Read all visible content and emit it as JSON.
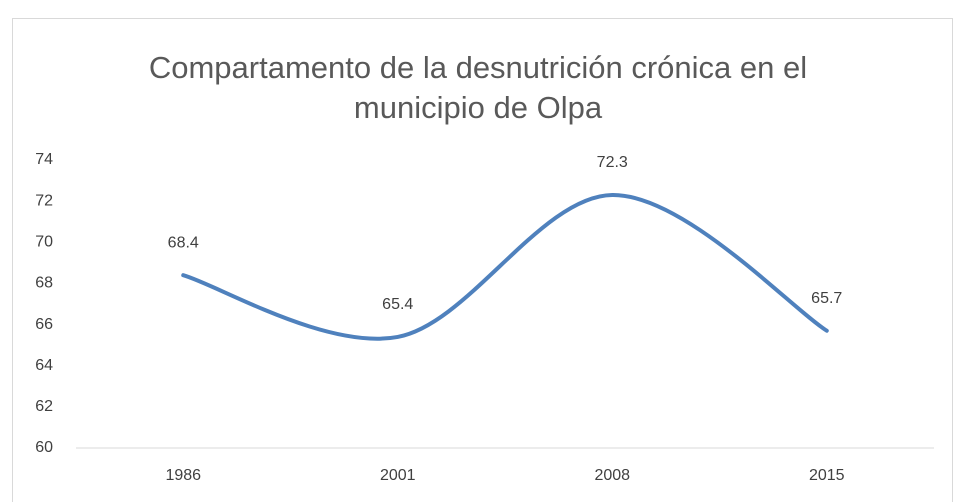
{
  "chart_data": {
    "type": "line",
    "title": "Compartamento de la desnutrición crónica en el municipio de Olpa",
    "categories": [
      "1986",
      "2001",
      "2008",
      "2015"
    ],
    "values": [
      68.4,
      65.4,
      72.3,
      65.7
    ],
    "color": "#4f81bd",
    "smooth": true,
    "data_labels": true,
    "ylim": [
      60,
      74
    ],
    "yticks": [
      60,
      62,
      64,
      66,
      68,
      70,
      72,
      74
    ],
    "grid": false
  }
}
